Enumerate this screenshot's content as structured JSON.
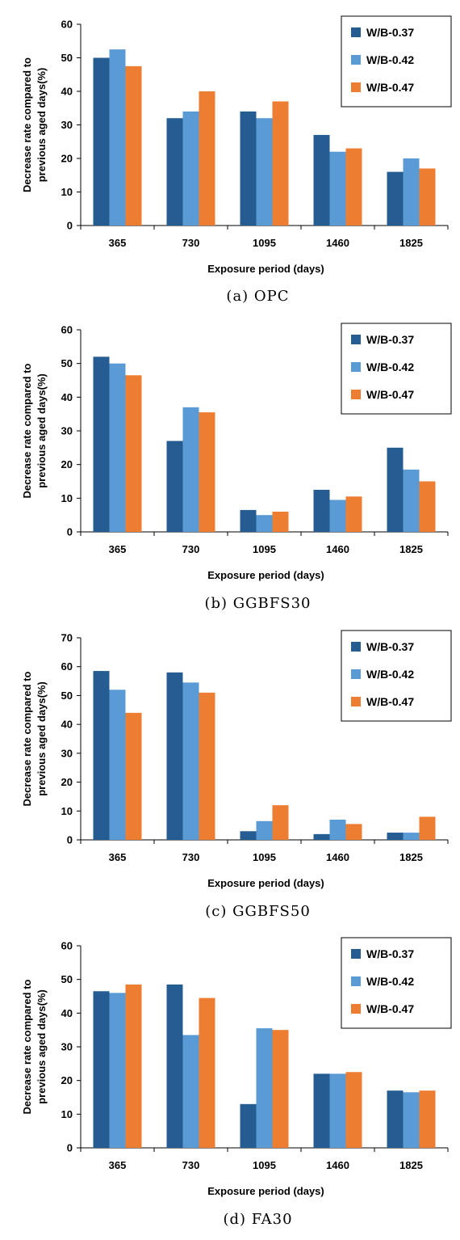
{
  "chart_data": [
    {
      "type": "bar",
      "caption": "(a) OPC",
      "xlabel": "Exposure period (days)",
      "ylabel": "Decrease rate compared to previous aged days(%)",
      "ylim": [
        0,
        60
      ],
      "yticks": [
        0,
        10,
        20,
        30,
        40,
        50,
        60
      ],
      "categories": [
        "365",
        "730",
        "1095",
        "1460",
        "1825"
      ],
      "legend_position": "top-right",
      "series": [
        {
          "name": "W/B-0.37",
          "color": "#255C92",
          "values": [
            50,
            32,
            34,
            27,
            16
          ]
        },
        {
          "name": "W/B-0.42",
          "color": "#5B9BD5",
          "values": [
            52.5,
            34,
            32,
            22,
            20
          ]
        },
        {
          "name": "W/B-0.47",
          "color": "#ED7D31",
          "values": [
            47.5,
            40,
            37,
            23,
            17
          ]
        }
      ]
    },
    {
      "type": "bar",
      "caption": "(b) GGBFS30",
      "xlabel": "Exposure period (days)",
      "ylabel": "Decrease rate compared to previous aged days(%)",
      "ylim": [
        0,
        60
      ],
      "yticks": [
        0,
        10,
        20,
        30,
        40,
        50,
        60
      ],
      "categories": [
        "365",
        "730",
        "1095",
        "1460",
        "1825"
      ],
      "legend_position": "top-right",
      "series": [
        {
          "name": "W/B-0.37",
          "color": "#255C92",
          "values": [
            52,
            27,
            6.5,
            12.5,
            25
          ]
        },
        {
          "name": "W/B-0.42",
          "color": "#5B9BD5",
          "values": [
            50,
            37,
            5,
            9.5,
            18.5
          ]
        },
        {
          "name": "W/B-0.47",
          "color": "#ED7D31",
          "values": [
            46.5,
            35.5,
            6,
            10.5,
            15
          ]
        }
      ]
    },
    {
      "type": "bar",
      "caption": "(c) GGBFS50",
      "xlabel": "Exposure period (days)",
      "ylabel": "Decrease rate compared to previous aged days(%)",
      "ylim": [
        0,
        70
      ],
      "yticks": [
        0,
        10,
        20,
        30,
        40,
        50,
        60,
        70
      ],
      "categories": [
        "365",
        "730",
        "1095",
        "1460",
        "1825"
      ],
      "legend_position": "top-right",
      "series": [
        {
          "name": "W/B-0.37",
          "color": "#255C92",
          "values": [
            58.5,
            58,
            3,
            2,
            2.5
          ]
        },
        {
          "name": "W/B-0.42",
          "color": "#5B9BD5",
          "values": [
            52,
            54.5,
            6.5,
            7,
            2.5
          ]
        },
        {
          "name": "W/B-0.47",
          "color": "#ED7D31",
          "values": [
            44,
            51,
            12,
            5.5,
            8
          ]
        }
      ]
    },
    {
      "type": "bar",
      "caption": "(d) FA30",
      "xlabel": "Exposure period (days)",
      "ylabel": "Decrease rate compared to previous aged days(%)",
      "ylim": [
        0,
        60
      ],
      "yticks": [
        0,
        10,
        20,
        30,
        40,
        50,
        60
      ],
      "categories": [
        "365",
        "730",
        "1095",
        "1460",
        "1825"
      ],
      "legend_position": "top-right",
      "series": [
        {
          "name": "W/B-0.37",
          "color": "#255C92",
          "values": [
            46.5,
            48.5,
            13,
            22,
            17
          ]
        },
        {
          "name": "W/B-0.42",
          "color": "#5B9BD5",
          "values": [
            46,
            33.5,
            35.5,
            22,
            16.5
          ]
        },
        {
          "name": "W/B-0.47",
          "color": "#ED7D31",
          "values": [
            48.5,
            44.5,
            35,
            22.5,
            17
          ]
        }
      ]
    }
  ]
}
